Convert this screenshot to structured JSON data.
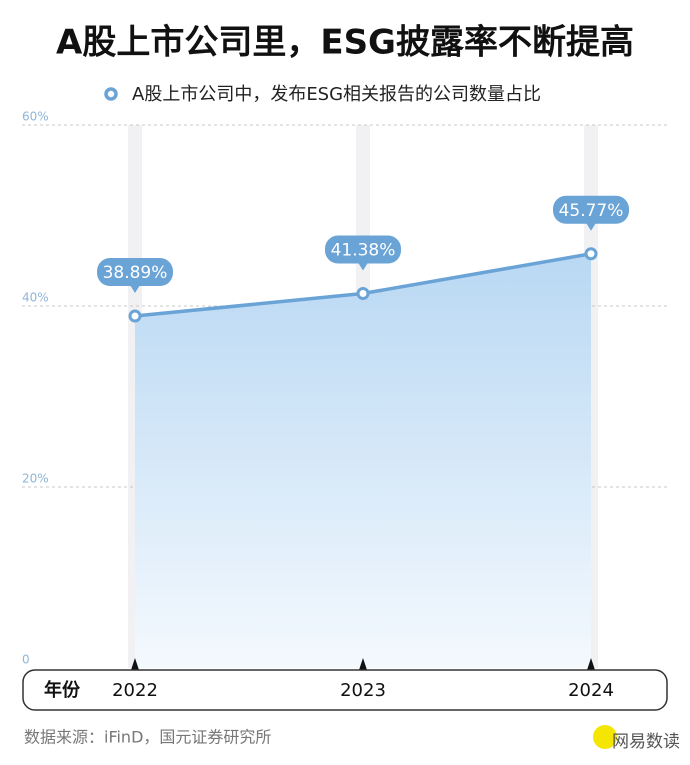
{
  "chart_data": {
    "type": "area",
    "title": "A股上市公司里，ESG披露率不断提高",
    "x_label": "年份",
    "categories": [
      "2022",
      "2023",
      "2024"
    ],
    "series": [
      {
        "name": "A股上市公司中，发布ESG相关报告的公司数量占比",
        "color": "#6aa3d6",
        "values": [
          38.89,
          41.38,
          45.77
        ],
        "value_labels": [
          "38.89%",
          "41.38%",
          "45.77%"
        ]
      }
    ],
    "ylim": [
      0,
      60
    ],
    "yticks": [
      0,
      {
        "value": 20,
        "label": "20%"
      },
      {
        "value": 40,
        "label": "40%"
      },
      {
        "value": 60,
        "label": "60%"
      }
    ],
    "grid": true,
    "source": "数据来源：iFinD，国元证券研究所",
    "watermark": "网易数读"
  }
}
